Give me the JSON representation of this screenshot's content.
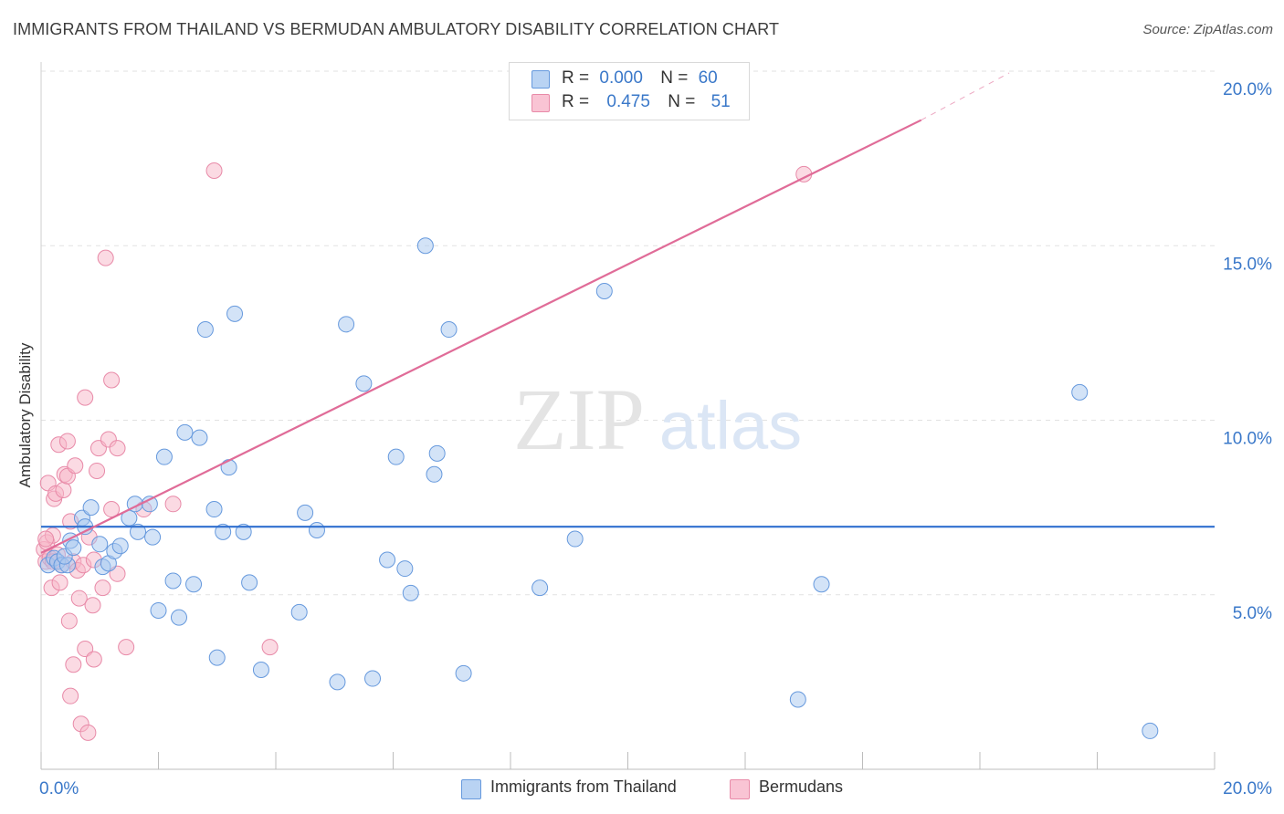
{
  "header": {
    "title": "IMMIGRANTS FROM THAILAND VS BERMUDAN AMBULATORY DISABILITY CORRELATION CHART",
    "source": "Source: ZipAtlas.com"
  },
  "watermark": {
    "zip": "ZIP",
    "atlas": "atlas"
  },
  "stats_box": {
    "rows": [
      {
        "r_label": "R =",
        "r_value": "0.000",
        "n_label": "N =",
        "n_value": "60"
      },
      {
        "r_label": "R =",
        "r_value": "0.475",
        "n_label": "N =",
        "n_value": "51"
      }
    ]
  },
  "legend": {
    "items": [
      "Immigrants from Thailand",
      "Bermudans"
    ]
  },
  "colors": {
    "blue_fill": "#a8c8f0",
    "blue_stroke": "#6699dd",
    "blue_line": "#2f6fcf",
    "pink_fill": "#f7b6c8",
    "pink_stroke": "#e88aa8",
    "pink_line": "#e06c98",
    "tick_label": "#3a78c9",
    "grid": "#e2e2e2"
  },
  "chart_data": {
    "type": "scatter",
    "title": "IMMIGRANTS FROM THAILAND VS BERMUDAN AMBULATORY DISABILITY CORRELATION CHART",
    "xlabel": "",
    "ylabel": "Ambulatory Disability",
    "xlim": [
      0,
      20
    ],
    "ylim": [
      0,
      20
    ],
    "x_tick_labels": [
      "0.0%",
      "20.0%"
    ],
    "y_ticks": [
      5,
      10,
      15,
      20
    ],
    "y_tick_labels": [
      "5.0%",
      "10.0%",
      "15.0%",
      "20.0%"
    ],
    "series": [
      {
        "name": "Immigrants from Thailand",
        "color": "#6699dd",
        "trend": {
          "x": [
            0,
            20
          ],
          "y": [
            6.95,
            6.95
          ]
        },
        "points": [
          [
            0.12,
            5.85
          ],
          [
            0.22,
            6.05
          ],
          [
            0.28,
            5.95
          ],
          [
            0.35,
            5.85
          ],
          [
            0.45,
            5.85
          ],
          [
            0.4,
            6.1
          ],
          [
            0.5,
            6.55
          ],
          [
            0.55,
            6.35
          ],
          [
            0.7,
            7.2
          ],
          [
            0.75,
            6.95
          ],
          [
            0.85,
            7.5
          ],
          [
            1.0,
            6.45
          ],
          [
            1.05,
            5.8
          ],
          [
            1.15,
            5.9
          ],
          [
            1.25,
            6.25
          ],
          [
            1.35,
            6.4
          ],
          [
            1.5,
            7.2
          ],
          [
            1.6,
            7.6
          ],
          [
            1.65,
            6.8
          ],
          [
            1.85,
            7.6
          ],
          [
            1.9,
            6.65
          ],
          [
            2.0,
            4.55
          ],
          [
            2.1,
            8.95
          ],
          [
            2.25,
            5.4
          ],
          [
            2.35,
            4.35
          ],
          [
            2.45,
            9.65
          ],
          [
            2.6,
            5.3
          ],
          [
            2.7,
            9.5
          ],
          [
            2.8,
            12.6
          ],
          [
            2.95,
            7.45
          ],
          [
            3.0,
            3.2
          ],
          [
            3.1,
            6.8
          ],
          [
            3.2,
            8.65
          ],
          [
            3.3,
            13.05
          ],
          [
            3.45,
            6.8
          ],
          [
            3.55,
            5.35
          ],
          [
            3.75,
            2.85
          ],
          [
            4.4,
            4.5
          ],
          [
            4.5,
            7.35
          ],
          [
            4.7,
            6.85
          ],
          [
            5.05,
            2.5
          ],
          [
            5.2,
            12.75
          ],
          [
            5.5,
            11.05
          ],
          [
            5.65,
            2.6
          ],
          [
            5.9,
            6.0
          ],
          [
            6.05,
            8.95
          ],
          [
            6.2,
            5.75
          ],
          [
            6.3,
            5.05
          ],
          [
            6.55,
            15.0
          ],
          [
            6.7,
            8.45
          ],
          [
            6.75,
            9.05
          ],
          [
            6.95,
            12.6
          ],
          [
            7.2,
            2.75
          ],
          [
            8.5,
            5.2
          ],
          [
            9.1,
            6.6
          ],
          [
            9.6,
            13.7
          ],
          [
            12.9,
            2.0
          ],
          [
            13.3,
            5.3
          ],
          [
            17.7,
            10.8
          ],
          [
            18.9,
            1.1
          ]
        ]
      },
      {
        "name": "Bermudans",
        "color": "#e88aa8",
        "trend": {
          "x": [
            0,
            15
          ],
          "y": [
            6.2,
            18.6
          ]
        },
        "trend_dashed": {
          "x": [
            15,
            16.5
          ],
          "y": [
            18.6,
            19.95
          ]
        },
        "points": [
          [
            0.05,
            6.3
          ],
          [
            0.08,
            5.95
          ],
          [
            0.1,
            6.5
          ],
          [
            0.12,
            8.2
          ],
          [
            0.15,
            6.05
          ],
          [
            0.18,
            5.2
          ],
          [
            0.2,
            6.7
          ],
          [
            0.22,
            7.75
          ],
          [
            0.25,
            7.9
          ],
          [
            0.28,
            6.15
          ],
          [
            0.3,
            9.3
          ],
          [
            0.32,
            5.35
          ],
          [
            0.35,
            5.85
          ],
          [
            0.38,
            8.0
          ],
          [
            0.4,
            8.45
          ],
          [
            0.45,
            9.4
          ],
          [
            0.45,
            8.4
          ],
          [
            0.48,
            4.25
          ],
          [
            0.5,
            7.1
          ],
          [
            0.55,
            5.95
          ],
          [
            0.55,
            3.0
          ],
          [
            0.5,
            2.1
          ],
          [
            0.58,
            8.7
          ],
          [
            0.62,
            5.7
          ],
          [
            0.65,
            4.9
          ],
          [
            0.68,
            1.3
          ],
          [
            0.72,
            5.85
          ],
          [
            0.75,
            10.65
          ],
          [
            0.75,
            3.45
          ],
          [
            0.8,
            1.05
          ],
          [
            0.82,
            6.65
          ],
          [
            0.88,
            4.7
          ],
          [
            0.9,
            3.15
          ],
          [
            0.95,
            8.55
          ],
          [
            0.98,
            9.2
          ],
          [
            1.05,
            5.2
          ],
          [
            1.1,
            14.65
          ],
          [
            1.15,
            9.45
          ],
          [
            1.2,
            7.45
          ],
          [
            1.2,
            11.15
          ],
          [
            1.3,
            5.6
          ],
          [
            1.3,
            9.2
          ],
          [
            1.45,
            3.5
          ],
          [
            1.75,
            7.45
          ],
          [
            2.25,
            7.6
          ],
          [
            2.95,
            17.15
          ],
          [
            3.9,
            3.5
          ],
          [
            13.0,
            17.05
          ],
          [
            0.08,
            6.6
          ],
          [
            0.2,
            5.95
          ],
          [
            0.9,
            6.0
          ]
        ]
      }
    ]
  }
}
